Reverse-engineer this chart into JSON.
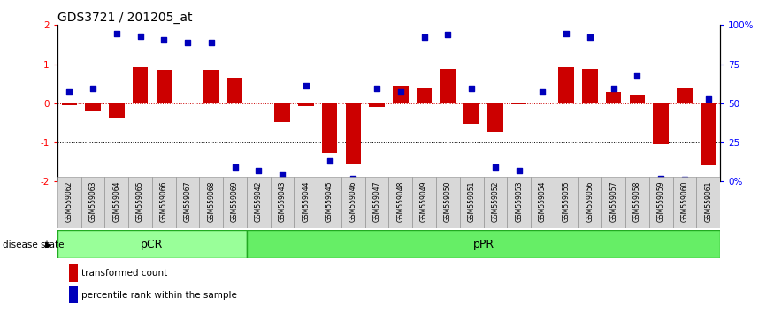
{
  "title": "GDS3721 / 201205_at",
  "samples": [
    "GSM559062",
    "GSM559063",
    "GSM559064",
    "GSM559065",
    "GSM559066",
    "GSM559067",
    "GSM559068",
    "GSM559069",
    "GSM559042",
    "GSM559043",
    "GSM559044",
    "GSM559045",
    "GSM559046",
    "GSM559047",
    "GSM559048",
    "GSM559049",
    "GSM559050",
    "GSM559051",
    "GSM559052",
    "GSM559053",
    "GSM559054",
    "GSM559055",
    "GSM559056",
    "GSM559057",
    "GSM559058",
    "GSM559059",
    "GSM559060",
    "GSM559061"
  ],
  "bar_values": [
    -0.05,
    -0.18,
    -0.38,
    0.92,
    0.85,
    0.0,
    0.85,
    0.65,
    0.02,
    -0.48,
    -0.08,
    -1.28,
    -1.55,
    -0.1,
    0.45,
    0.38,
    0.88,
    -0.52,
    -0.72,
    -0.02,
    0.02,
    0.92,
    0.88,
    0.28,
    0.22,
    -1.05,
    0.38,
    -1.58
  ],
  "dot_values": [
    0.28,
    0.38,
    1.78,
    1.72,
    1.62,
    1.55,
    1.55,
    -1.62,
    -1.72,
    -1.82,
    0.45,
    -1.48,
    -1.92,
    0.38,
    0.28,
    1.68,
    1.75,
    0.38,
    -1.62,
    -1.72,
    0.28,
    1.78,
    1.68,
    0.38,
    0.72,
    -1.92,
    -1.95,
    0.1
  ],
  "pCR_count": 8,
  "pPR_count": 20,
  "ylim": [
    -2,
    2
  ],
  "yticks_left": [
    -2,
    -1,
    0,
    1,
    2
  ],
  "right_ylabels": [
    "0%",
    "25",
    "50",
    "75",
    "100%"
  ],
  "right_tick_positions": [
    -2,
    -1,
    0,
    1,
    2
  ],
  "bar_color": "#CC0000",
  "dot_color": "#0000BB",
  "pCR_color": "#99FF99",
  "pPR_color": "#66EE66",
  "group_border_color": "#22AA22",
  "title_fontsize": 10,
  "label_fontsize": 8
}
